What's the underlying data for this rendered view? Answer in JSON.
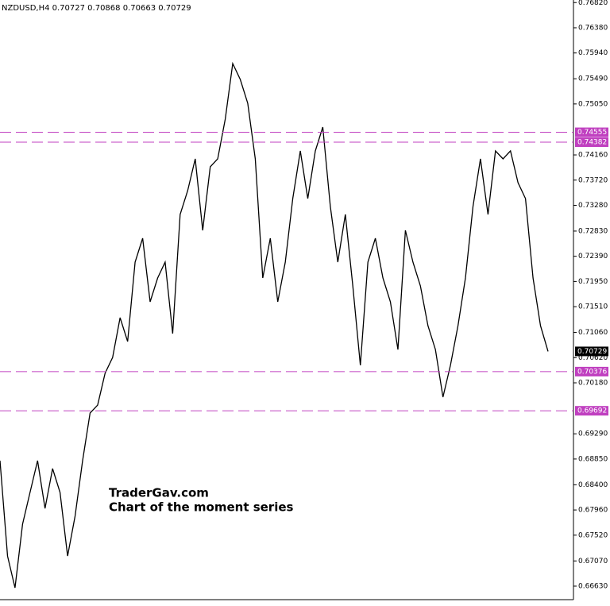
{
  "chart_data": {
    "type": "line",
    "title": "NZDUSD,H4  0.70727 0.70868 0.70663 0.70729",
    "annotations": [
      "TraderGav.com",
      "Chart of the moment series"
    ],
    "color": "#000000",
    "ylim": [
      0.66394,
      0.76865
    ],
    "yticks": [
      {
        "value": 0.7682,
        "label": "0.76820"
      },
      {
        "value": 0.7638,
        "label": "0.76380"
      },
      {
        "value": 0.7594,
        "label": "0.75940"
      },
      {
        "value": 0.7549,
        "label": "0.75490"
      },
      {
        "value": 0.7505,
        "label": "0.75050"
      },
      {
        "value": 0.7416,
        "label": "0.74160"
      },
      {
        "value": 0.7372,
        "label": "0.73720"
      },
      {
        "value": 0.7328,
        "label": "0.73280"
      },
      {
        "value": 0.7283,
        "label": "0.72830"
      },
      {
        "value": 0.7239,
        "label": "0.72390"
      },
      {
        "value": 0.7195,
        "label": "0.71950"
      },
      {
        "value": 0.7151,
        "label": "0.71510"
      },
      {
        "value": 0.7106,
        "label": "0.71060"
      },
      {
        "value": 0.7062,
        "label": "0.70620"
      },
      {
        "value": 0.7018,
        "label": "0.70180"
      },
      {
        "value": 0.6929,
        "label": "0.69290"
      },
      {
        "value": 0.6885,
        "label": "0.68850"
      },
      {
        "value": 0.684,
        "label": "0.68400"
      },
      {
        "value": 0.6796,
        "label": "0.67960"
      },
      {
        "value": 0.6752,
        "label": "0.67520"
      },
      {
        "value": 0.6707,
        "label": "0.67070"
      },
      {
        "value": 0.6663,
        "label": "0.66630"
      }
    ],
    "levels": [
      0.74555,
      0.74382,
      0.70376,
      0.69692
    ],
    "level_color": "#c040c0",
    "current_price": 0.70729,
    "values": [
      0.68821,
      0.67156,
      0.66601,
      0.67711,
      0.68266,
      0.68821,
      0.67988,
      0.68682,
      0.68266,
      0.67156,
      0.6785,
      0.68821,
      0.69653,
      0.69791,
      0.70346,
      0.70624,
      0.71317,
      0.70901,
      0.72288,
      0.72704,
      0.71595,
      0.72011,
      0.72288,
      0.7104,
      0.7312,
      0.73536,
      0.74091,
      0.72843,
      0.73952,
      0.74091,
      0.74785,
      0.75755,
      0.75478,
      0.75062,
      0.74091,
      0.72011,
      0.72704,
      0.71595,
      0.72288,
      0.73398,
      0.7423,
      0.73398,
      0.7423,
      0.74646,
      0.73259,
      0.72288,
      0.7312,
      0.71872,
      0.70485,
      0.72288,
      0.72704,
      0.72011,
      0.71595,
      0.70762,
      0.72843,
      0.72288,
      0.71872,
      0.71178,
      0.70762,
      0.6993,
      0.70485,
      0.71178,
      0.72011,
      0.73259,
      0.74091,
      0.7312,
      0.7423,
      0.74091,
      0.7423,
      0.73675,
      0.73398,
      0.72011,
      0.71178,
      0.70729
    ]
  }
}
